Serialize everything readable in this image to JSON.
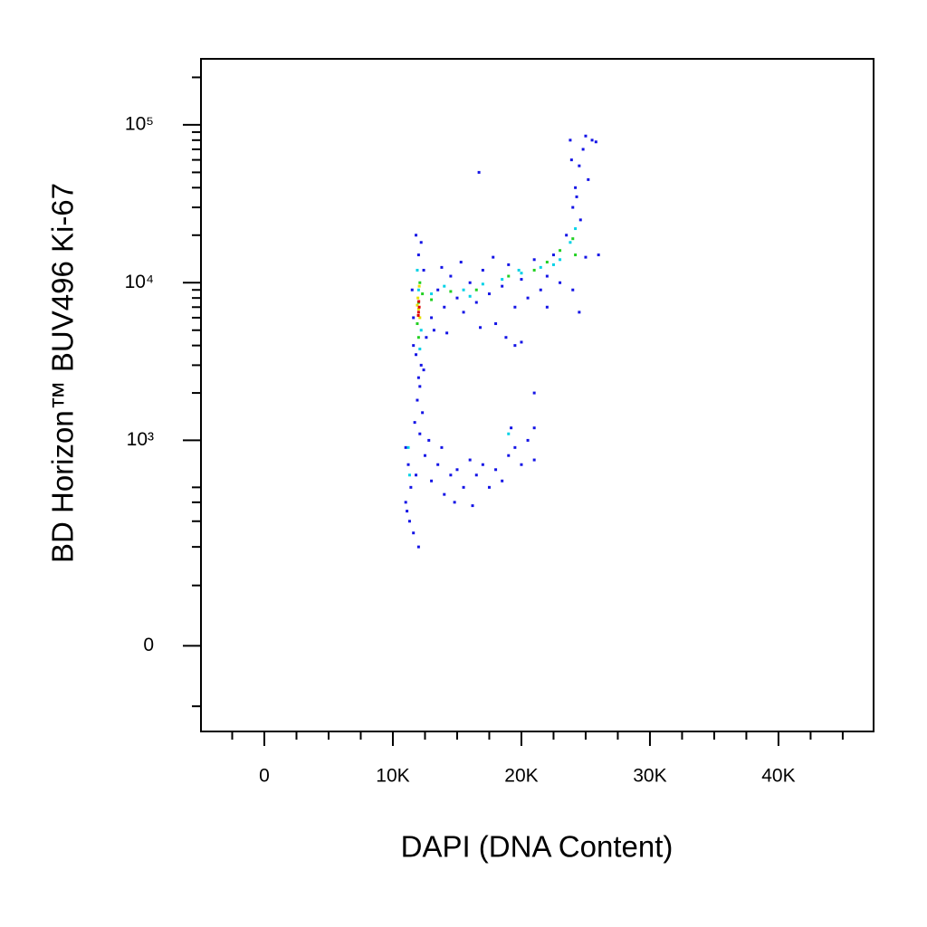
{
  "chart_data": {
    "type": "scatter",
    "xlabel": "DAPI (DNA Content)",
    "ylabel": "BD Horizon™ BUV496 Ki-67",
    "xlim": [
      -4930,
      47400
    ],
    "ylim": [
      -160,
      262000
    ],
    "yscale": "biexponential",
    "xticks": [
      0,
      {
        "value": 10000,
        "label": "10K"
      },
      {
        "value": 20000,
        "label": "20K"
      },
      {
        "value": 30000,
        "label": "30K"
      },
      {
        "value": 40000,
        "label": "40K"
      }
    ],
    "xminorticks": [
      -2500,
      2500,
      5000,
      7500,
      12500,
      15000,
      17500,
      22500,
      25000,
      27500,
      32500,
      35000,
      37500,
      42500,
      45000
    ],
    "yticks": [
      0,
      {
        "value": 1000,
        "label": "10³"
      },
      {
        "value": 10000,
        "label": "10⁴"
      },
      {
        "value": 100000,
        "label": "10⁵"
      }
    ],
    "yminorticks": [
      -100,
      100,
      200,
      300,
      400,
      500,
      2000,
      3000,
      4000,
      5000,
      6000,
      7000,
      8000,
      9000,
      20000,
      30000,
      40000,
      50000,
      60000,
      70000,
      80000,
      90000,
      200000
    ],
    "series": [
      {
        "color": "#1414e6",
        "x": [
          11800,
          12200,
          12000,
          12400,
          11600,
          12100,
          11900,
          12300,
          11700,
          12000,
          12200,
          11800,
          12400,
          11500,
          11600,
          12600,
          12100,
          11000,
          11200,
          11400,
          11000,
          11300,
          11600,
          12000,
          11100,
          11800,
          12500,
          13000,
          13500,
          14000,
          14500,
          15000,
          15500,
          16000,
          16500,
          17000,
          17500,
          18000,
          18500,
          19000,
          19500,
          20000,
          20500,
          21000,
          14800,
          16200,
          13800,
          12800,
          19200,
          21000,
          13000,
          13500,
          14000,
          14500,
          15000,
          15500,
          16000,
          16500,
          17000,
          17500,
          18000,
          18500,
          19000,
          19500,
          20000,
          20500,
          21000,
          21500,
          22000,
          22500,
          23000,
          13200,
          14200,
          16800,
          18800,
          19500,
          20000,
          21000,
          16700,
          15300,
          17800,
          13800,
          22000,
          24500,
          24000,
          23500,
          24000,
          24200,
          24500,
          23800,
          25000,
          25500,
          24800,
          25200,
          24300,
          25800,
          23900,
          26000,
          25000,
          24600
        ],
        "values": [
          3500,
          3000,
          2500,
          2800,
          4000,
          2200,
          1800,
          1500,
          1300,
          15000,
          18000,
          20000,
          12000,
          9000,
          6000,
          4500,
          1100,
          900,
          700,
          500,
          400,
          300,
          250,
          200,
          350,
          600,
          800,
          550,
          700,
          450,
          600,
          650,
          500,
          750,
          600,
          700,
          500,
          650,
          550,
          800,
          900,
          700,
          1000,
          750,
          400,
          380,
          900,
          1000,
          1200,
          1200,
          6000,
          9000,
          7000,
          11000,
          8000,
          6500,
          10000,
          7500,
          12000,
          8500,
          5500,
          9500,
          13000,
          7000,
          10500,
          8000,
          14000,
          9000,
          11000,
          15000,
          10000,
          5000,
          4800,
          5200,
          4500,
          4000,
          4200,
          2000,
          50000,
          13500,
          14500,
          12500,
          7000,
          6500,
          9000,
          20000,
          30000,
          40000,
          55000,
          80000,
          85000,
          80000,
          70000,
          45000,
          35000,
          78000,
          60000,
          15000,
          14500,
          25000
        ]
      },
      {
        "color": "#00d2e6",
        "x": [
          12000,
          11900,
          12200,
          12100,
          13000,
          14000,
          15500,
          17000,
          18500,
          20000,
          21500,
          23000,
          23800,
          24200,
          11300,
          11200,
          19000,
          16000,
          22500,
          19800
        ],
        "values": [
          9000,
          12000,
          5000,
          3800,
          8500,
          9500,
          9000,
          9800,
          10500,
          11500,
          12500,
          14000,
          18000,
          22000,
          600,
          900,
          1100,
          8200,
          13000,
          12000
        ]
      },
      {
        "color": "#22d022",
        "x": [
          12000,
          12100,
          11900,
          12300,
          13000,
          14500,
          16500,
          19000,
          21000,
          23000,
          24000,
          24200,
          22000,
          12000
        ],
        "values": [
          7500,
          10000,
          5500,
          8500,
          7800,
          8800,
          9000,
          11000,
          12000,
          16000,
          19000,
          15000,
          13500,
          4500
        ]
      },
      {
        "color": "#e8e000",
        "x": [
          12000,
          11950,
          12100,
          12050,
          11900
        ],
        "values": [
          6800,
          8000,
          6000,
          9500,
          7200
        ]
      },
      {
        "color": "#e00000",
        "x": [
          12000,
          12050,
          11980,
          12020
        ],
        "values": [
          6500,
          7000,
          6200,
          7600
        ]
      }
    ]
  }
}
